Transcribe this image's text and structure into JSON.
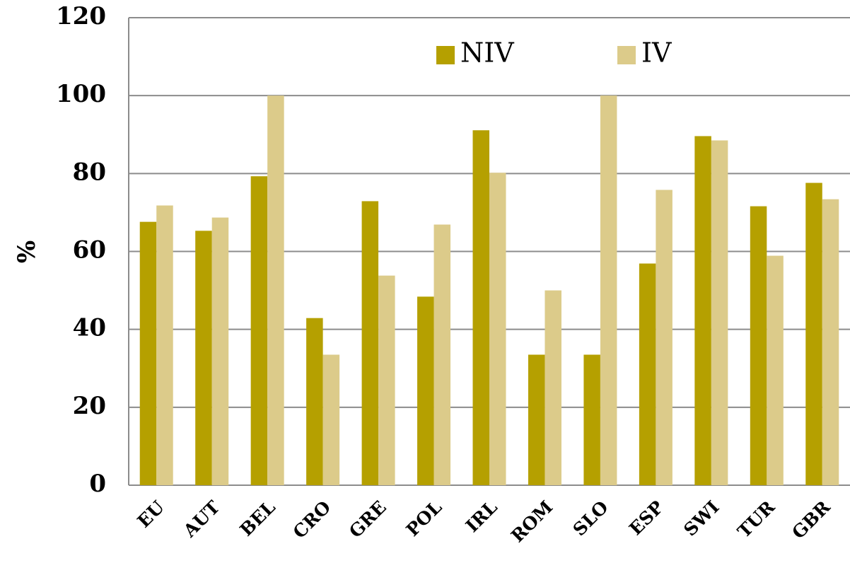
{
  "chart_data": {
    "type": "bar",
    "y_label": "%",
    "categories": [
      "EU",
      "AUT",
      "BEL",
      "CRO",
      "GRE",
      "POL",
      "IRL",
      "ROM",
      "SLO",
      "ESP",
      "SWI",
      "TUR",
      "GBR"
    ],
    "series": [
      {
        "name": "NIV",
        "color": "#b5a000",
        "values": [
          67.6,
          65.3,
          79.3,
          42.9,
          72.9,
          48.4,
          91.1,
          33.5,
          33.5,
          56.9,
          89.6,
          71.6,
          77.6
        ]
      },
      {
        "name": "IV",
        "color": "#dccb8a",
        "values": [
          71.8,
          68.7,
          100,
          33.5,
          53.8,
          66.9,
          80.2,
          50,
          100,
          75.8,
          88.5,
          58.9,
          73.4
        ]
      }
    ],
    "ylim": [
      0,
      120
    ],
    "yticks": [
      0,
      20,
      40,
      60,
      80,
      100,
      120
    ],
    "grid": true
  }
}
